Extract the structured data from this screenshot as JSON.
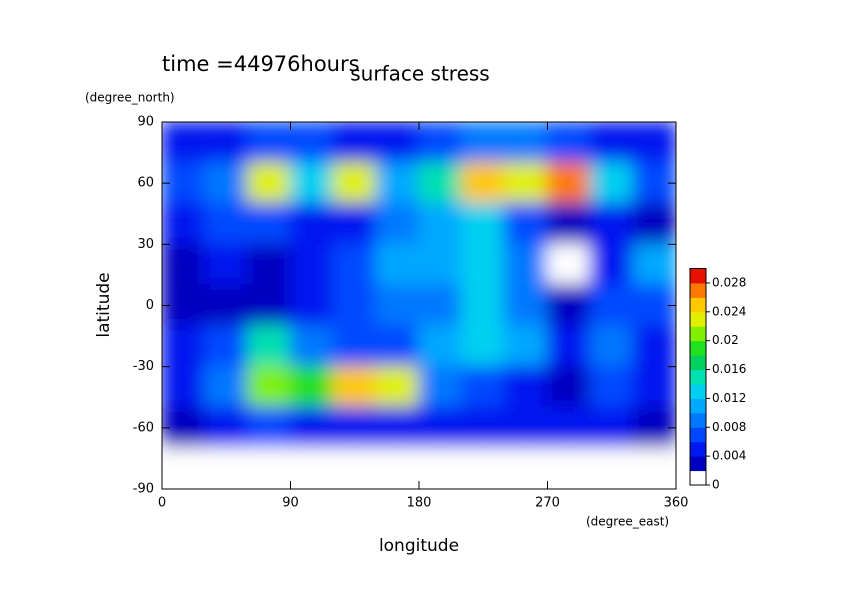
{
  "chart_data": {
    "type": "heatmap",
    "title": "surface stress",
    "annotation": "time =44976hours",
    "xlabel": "longitude",
    "ylabel": "latitude",
    "xunits": "(degree_east)",
    "yunits": "(degree_north)",
    "x": [
      15,
      45,
      75,
      105,
      135,
      165,
      195,
      225,
      255,
      285,
      315,
      345
    ],
    "y": [
      80,
      60,
      40,
      20,
      0,
      -20,
      -40,
      -60,
      -80
    ],
    "z": [
      [
        0.004,
        0.005,
        0.006,
        0.006,
        0.005,
        0.005,
        0.006,
        0.008,
        0.008,
        0.006,
        0.005,
        0.004
      ],
      [
        0.006,
        0.008,
        0.022,
        0.012,
        0.022,
        0.01,
        0.014,
        0.024,
        0.022,
        0.026,
        0.012,
        0.006
      ],
      [
        0.004,
        0.006,
        0.006,
        0.005,
        0.004,
        0.008,
        0.01,
        0.012,
        0.006,
        0.002,
        0.004,
        0.003
      ],
      [
        0.003,
        0.004,
        0.003,
        0.004,
        0.006,
        0.01,
        0.01,
        0.012,
        0.008,
        0,
        0.005,
        0.01
      ],
      [
        0.002,
        0.003,
        0.002,
        0.005,
        0.006,
        0.008,
        0.008,
        0.012,
        0.008,
        0.002,
        0.006,
        0.006
      ],
      [
        0.004,
        0.006,
        0.014,
        0.008,
        0.006,
        0.006,
        0.01,
        0.012,
        0.01,
        0.004,
        0.008,
        0.004
      ],
      [
        0.004,
        0.008,
        0.02,
        0.018,
        0.024,
        0.022,
        0.008,
        0.006,
        0.004,
        0.002,
        0.006,
        0.004
      ],
      [
        0.003,
        0.004,
        0.006,
        0.004,
        0.004,
        0.004,
        0.004,
        0.004,
        0.004,
        0.004,
        0.004,
        0.002
      ],
      [
        0,
        0,
        0,
        0,
        0,
        0,
        0,
        0,
        0,
        0,
        0,
        0
      ]
    ],
    "xlim": [
      0,
      360
    ],
    "xticks": [
      0,
      90,
      180,
      270,
      360
    ],
    "ylim": [
      -90,
      90
    ],
    "yticks": [
      -90,
      -60,
      -30,
      0,
      30,
      60,
      90
    ],
    "clim": [
      0,
      0.03
    ],
    "cticks": [
      0,
      0.004,
      0.008,
      0.012,
      0.016,
      0.02,
      0.024,
      0.028
    ],
    "colormap": [
      "#ffffff",
      "#0000c0",
      "#0018f0",
      "#0048ff",
      "#0078ff",
      "#00a8ff",
      "#00d0f0",
      "#00e0b0",
      "#00d060",
      "#20e020",
      "#80f000",
      "#e0f000",
      "#ffc800",
      "#ff7800",
      "#e81000"
    ]
  }
}
